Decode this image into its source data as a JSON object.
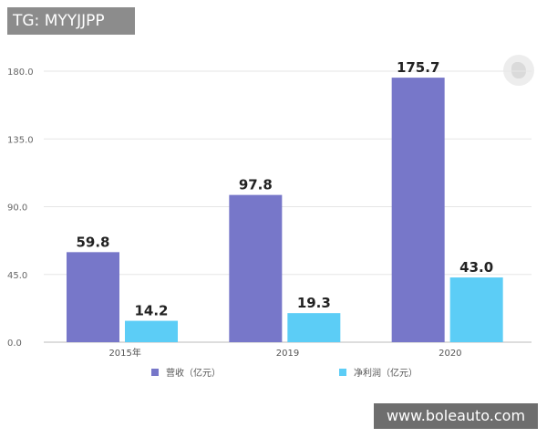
{
  "watermark_top": "TG: MYYJJPP",
  "watermark_bottom": "www.boleauto.com",
  "colors": {
    "revenue": "#7777c9",
    "net_profit": "#5ccdf6",
    "grid": "#e6e6e6",
    "axis": "#bbbbbb",
    "watermark_top_bg": "#8c8c8c",
    "watermark_bottom_bg": "#6e6e6e"
  },
  "logo_icon": "brand-logo-icon",
  "chart_data": {
    "type": "bar",
    "title": "",
    "xlabel": "",
    "ylabel": "",
    "categories": [
      "2015年",
      "2019",
      "2020"
    ],
    "series": [
      {
        "name": "营收（亿元）",
        "values": [
          59.8,
          97.8,
          175.7
        ],
        "labels": [
          "59.8",
          "97.8",
          "175.7"
        ]
      },
      {
        "name": "净利润（亿元）",
        "values": [
          14.2,
          19.3,
          43.0
        ],
        "labels": [
          "14.2",
          "19.3",
          "43.0"
        ]
      }
    ],
    "yticks": [
      "0.0",
      "45.0",
      "90.0",
      "135.0",
      "180.0"
    ],
    "ylim": [
      0,
      180
    ],
    "grid": true,
    "legend": "bottom"
  }
}
